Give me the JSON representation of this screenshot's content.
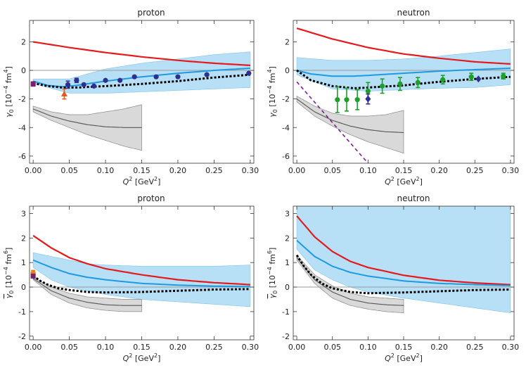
{
  "chart_data": [
    {
      "type": "line",
      "title": "proton",
      "ylabel_sym": "γ",
      "ylabel_sub": "0",
      "ylabel_overbar": false,
      "ylabel_units": "[10",
      "ylabel_exp": "−4",
      "ylabel_unit2": " fm",
      "ylabel_unit2_exp": "4",
      "ylabel_close": "]",
      "xlabel_main": "Q",
      "xlabel_exp": "2",
      "xlabel_units": " [GeV",
      "xlabel_units_exp": "2",
      "xlabel_close": "]",
      "xlim": [
        -0.005,
        0.305
      ],
      "ylim": [
        -6.5,
        3.5
      ],
      "xticks": [
        0.0,
        0.05,
        0.1,
        0.15,
        0.2,
        0.25,
        0.3
      ],
      "xtick_labels": [
        "0.00",
        "0.05",
        "0.10",
        "0.15",
        "0.20",
        "0.25",
        "0.30"
      ],
      "yticks": [
        -6,
        -4,
        -2,
        0,
        2
      ],
      "ytick_labels": [
        "-6",
        "-4",
        "-2",
        "0",
        "2"
      ],
      "red_line": {
        "x": [
          0,
          0.05,
          0.1,
          0.15,
          0.2,
          0.25,
          0.3
        ],
        "y": [
          2.0,
          1.6,
          1.25,
          0.95,
          0.7,
          0.5,
          0.35
        ]
      },
      "blue_line": {
        "x": [
          0,
          0.02,
          0.04,
          0.06,
          0.08,
          0.1,
          0.15,
          0.2,
          0.25,
          0.3
        ],
        "y": [
          -0.75,
          -1.05,
          -1.15,
          -1.05,
          -0.9,
          -0.75,
          -0.45,
          -0.2,
          0.0,
          0.15
        ]
      },
      "blue_band": {
        "x": [
          0,
          0.05,
          0.1,
          0.15,
          0.2,
          0.25,
          0.3
        ],
        "lower": [
          -0.9,
          -1.6,
          -1.6,
          -1.5,
          -1.4,
          -1.3,
          -1.2
        ],
        "upper": [
          -0.6,
          -0.6,
          0.1,
          0.5,
          0.8,
          1.1,
          1.3
        ]
      },
      "dotted_line": {
        "x": [
          0,
          0.02,
          0.04,
          0.06,
          0.1,
          0.15,
          0.2,
          0.25,
          0.3
        ],
        "y": [
          -0.9,
          -1.1,
          -1.2,
          -1.2,
          -1.1,
          -0.95,
          -0.75,
          -0.5,
          -0.3
        ]
      },
      "gray_line": {
        "x": [
          0,
          0.025,
          0.05,
          0.075,
          0.1,
          0.125,
          0.15
        ],
        "y": [
          -2.7,
          -3.2,
          -3.55,
          -3.8,
          -3.95,
          -4.0,
          -4.0
        ]
      },
      "gray_band": {
        "x": [
          0,
          0.025,
          0.05,
          0.075,
          0.1,
          0.125,
          0.15
        ],
        "lower": [
          -2.9,
          -3.5,
          -4.0,
          -4.5,
          -4.9,
          -5.3,
          -5.6
        ],
        "upper": [
          -2.5,
          -2.9,
          -3.1,
          -3.1,
          -2.9,
          -2.7,
          -2.4
        ]
      },
      "gray_refline": {
        "y": 0
      },
      "data_sets": [
        {
          "name": "navy-circles",
          "color": "#2e2f8f",
          "marker": "circle",
          "points": [
            {
              "x": 0.048,
              "y": -1.0,
              "err": 0.25
            },
            {
              "x": 0.06,
              "y": -0.7,
              "err": 0.15
            },
            {
              "x": 0.07,
              "y": -1.0,
              "err": 0.0
            },
            {
              "x": 0.084,
              "y": -1.1,
              "err": 0.0
            },
            {
              "x": 0.1,
              "y": -0.7,
              "err": 0.0
            },
            {
              "x": 0.12,
              "y": -0.7,
              "err": 0.0
            },
            {
              "x": 0.14,
              "y": -0.45,
              "err": 0.0
            },
            {
              "x": 0.17,
              "y": -0.45,
              "err": 0.0
            },
            {
              "x": 0.2,
              "y": -0.45,
              "err": 0.0
            },
            {
              "x": 0.24,
              "y": -0.3,
              "err": 0.0
            },
            {
              "x": 0.298,
              "y": -0.2,
              "err": 0.0
            }
          ]
        },
        {
          "name": "orange-triangle",
          "color": "#e8581c",
          "marker": "triangle",
          "points": [
            {
              "x": 0.043,
              "y": -1.65,
              "err": 0.35
            }
          ]
        },
        {
          "name": "purple-square",
          "color": "#7a1f6b",
          "marker": "square",
          "points": [
            {
              "x": 0.0,
              "y": -0.95,
              "err": 0.15
            }
          ]
        }
      ],
      "purple_dashed": null
    },
    {
      "type": "line",
      "title": "neutron",
      "ylabel_sym": "γ",
      "ylabel_sub": "0",
      "ylabel_overbar": false,
      "ylabel_units": "[10",
      "ylabel_exp": "−4",
      "ylabel_unit2": " fm",
      "ylabel_unit2_exp": "4",
      "ylabel_close": "]",
      "xlabel_main": "Q",
      "xlabel_exp": "2",
      "xlabel_units": " [GeV",
      "xlabel_units_exp": "2",
      "xlabel_close": "]",
      "xlim": [
        -0.005,
        0.305
      ],
      "ylim": [
        -6.5,
        3.5
      ],
      "xticks": [
        0.0,
        0.05,
        0.1,
        0.15,
        0.2,
        0.25,
        0.3
      ],
      "xtick_labels": [
        "0.00",
        "0.05",
        "0.10",
        "0.15",
        "0.20",
        "0.25",
        "0.30"
      ],
      "yticks": [
        -6,
        -4,
        -2,
        0,
        2
      ],
      "ytick_labels": [
        "-6",
        "-4",
        "-2",
        "0",
        "2"
      ],
      "red_line": {
        "x": [
          0,
          0.05,
          0.1,
          0.15,
          0.2,
          0.25,
          0.3
        ],
        "y": [
          2.95,
          2.2,
          1.6,
          1.15,
          0.85,
          0.6,
          0.45
        ]
      },
      "blue_line": {
        "x": [
          0,
          0.02,
          0.05,
          0.08,
          0.1,
          0.15,
          0.2,
          0.25,
          0.3
        ],
        "y": [
          0.0,
          -0.25,
          -0.4,
          -0.4,
          -0.35,
          -0.2,
          -0.05,
          0.05,
          0.15
        ]
      },
      "blue_band": {
        "x": [
          0,
          0.05,
          0.1,
          0.15,
          0.2,
          0.25,
          0.3
        ],
        "lower": [
          -0.3,
          -1.3,
          -1.45,
          -1.35,
          -1.25,
          -1.2,
          -1.0
        ],
        "upper": [
          0.9,
          0.7,
          0.7,
          0.8,
          1.0,
          1.25,
          1.5
        ]
      },
      "dotted_line": {
        "x": [
          0,
          0.02,
          0.05,
          0.08,
          0.1,
          0.15,
          0.2,
          0.25,
          0.3
        ],
        "y": [
          0.0,
          -0.7,
          -1.1,
          -1.25,
          -1.2,
          -1.05,
          -0.8,
          -0.6,
          -0.45
        ]
      },
      "gray_line": {
        "x": [
          0,
          0.025,
          0.05,
          0.075,
          0.1,
          0.125,
          0.15
        ],
        "y": [
          -2.0,
          -2.9,
          -3.5,
          -3.9,
          -4.15,
          -4.3,
          -4.35
        ]
      },
      "gray_band": {
        "x": [
          0,
          0.025,
          0.05,
          0.075,
          0.1,
          0.125,
          0.15
        ],
        "lower": [
          -2.2,
          -3.2,
          -3.9,
          -4.5,
          -5.0,
          -5.4,
          -5.8
        ],
        "upper": [
          -1.8,
          -2.5,
          -3.0,
          -3.2,
          -3.2,
          -3.1,
          -2.8
        ]
      },
      "gray_refline": {
        "y": 0
      },
      "data_sets": [
        {
          "name": "green-circles",
          "color": "#1f9e2a",
          "marker": "circle",
          "points": [
            {
              "x": 0.057,
              "y": -2.05,
              "err": 0.9
            },
            {
              "x": 0.07,
              "y": -2.05,
              "err": 0.8
            },
            {
              "x": 0.085,
              "y": -2.05,
              "err": 0.7
            },
            {
              "x": 0.1,
              "y": -1.45,
              "err": 0.6
            },
            {
              "x": 0.12,
              "y": -1.1,
              "err": 0.5
            },
            {
              "x": 0.145,
              "y": -0.95,
              "err": 0.45
            },
            {
              "x": 0.17,
              "y": -0.85,
              "err": 0.35
            },
            {
              "x": 0.205,
              "y": -0.65,
              "err": 0.3
            },
            {
              "x": 0.245,
              "y": -0.45,
              "err": 0.25
            },
            {
              "x": 0.29,
              "y": -0.4,
              "err": 0.2
            }
          ]
        },
        {
          "name": "navy-diamonds",
          "color": "#2e2f8f",
          "marker": "diamond",
          "points": [
            {
              "x": 0.1,
              "y": -2.0,
              "err": 0.35
            },
            {
              "x": 0.255,
              "y": -0.6,
              "err": 0.0
            }
          ]
        }
      ],
      "purple_dashed": {
        "x": [
          0.0,
          0.1
        ],
        "y": [
          -0.8,
          -6.5
        ]
      }
    },
    {
      "type": "line",
      "title": "proton",
      "ylabel_sym": "γ",
      "ylabel_sub": "0",
      "ylabel_overbar": true,
      "ylabel_units": "[10",
      "ylabel_exp": "−4",
      "ylabel_unit2": " fm",
      "ylabel_unit2_exp": "6",
      "ylabel_close": "]",
      "xlabel_main": "Q",
      "xlabel_exp": "2",
      "xlabel_units": " [GeV",
      "xlabel_units_exp": "2",
      "xlabel_close": "]",
      "xlim": [
        -0.005,
        0.305
      ],
      "ylim": [
        -2.15,
        3.3
      ],
      "xticks": [
        0.0,
        0.05,
        0.1,
        0.15,
        0.2,
        0.25,
        0.3
      ],
      "xtick_labels": [
        "0.00",
        "0.05",
        "0.10",
        "0.15",
        "0.20",
        "0.25",
        "0.30"
      ],
      "yticks": [
        -2,
        -1,
        0,
        1,
        2,
        3
      ],
      "ytick_labels": [
        "-2",
        "-1",
        "0",
        "1",
        "2",
        "3"
      ],
      "red_line": {
        "x": [
          0,
          0.025,
          0.05,
          0.075,
          0.1,
          0.15,
          0.2,
          0.25,
          0.3
        ],
        "y": [
          2.1,
          1.6,
          1.2,
          0.95,
          0.75,
          0.5,
          0.3,
          0.18,
          0.1
        ]
      },
      "blue_line": {
        "x": [
          0,
          0.025,
          0.05,
          0.075,
          0.1,
          0.15,
          0.2,
          0.25,
          0.3
        ],
        "y": [
          1.1,
          0.8,
          0.55,
          0.4,
          0.3,
          0.15,
          0.08,
          0.04,
          0.02
        ]
      },
      "blue_band": {
        "x": [
          0,
          0.025,
          0.05,
          0.075,
          0.1,
          0.15,
          0.2,
          0.25,
          0.3
        ],
        "lower": [
          0.8,
          0.3,
          0.0,
          -0.15,
          -0.3,
          -0.5,
          -0.6,
          -0.7,
          -0.8
        ],
        "upper": [
          1.4,
          1.25,
          1.1,
          0.95,
          0.9,
          0.85,
          0.85,
          0.85,
          0.9
        ]
      },
      "dotted_line": {
        "x": [
          0,
          0.01,
          0.02,
          0.035,
          0.05,
          0.075,
          0.1,
          0.15,
          0.2,
          0.25,
          0.3
        ],
        "y": [
          0.45,
          0.25,
          0.1,
          -0.05,
          -0.12,
          -0.2,
          -0.22,
          -0.2,
          -0.15,
          -0.1,
          -0.08
        ]
      },
      "gray_line": {
        "x": [
          0,
          0.025,
          0.05,
          0.075,
          0.1,
          0.125,
          0.15
        ],
        "y": [
          0.35,
          -0.15,
          -0.45,
          -0.62,
          -0.72,
          -0.75,
          -0.75
        ]
      },
      "gray_band": {
        "x": [
          0,
          0.025,
          0.05,
          0.075,
          0.1,
          0.125,
          0.15
        ],
        "lower": [
          0.3,
          -0.3,
          -0.65,
          -0.85,
          -0.95,
          -1.0,
          -1.0
        ],
        "upper": [
          0.4,
          0.0,
          -0.25,
          -0.4,
          -0.45,
          -0.5,
          -0.5
        ]
      },
      "gray_refline": {
        "y": 0
      },
      "data_sets": [
        {
          "name": "orange-point",
          "color": "#e8801c",
          "marker": "circle",
          "points": [
            {
              "x": 0.0,
              "y": 0.58,
              "err": 0.1
            }
          ]
        },
        {
          "name": "purple-square",
          "color": "#7a1f6b",
          "marker": "square",
          "points": [
            {
              "x": 0.0,
              "y": 0.45,
              "err": 0.05
            }
          ]
        }
      ],
      "purple_dashed": null
    },
    {
      "type": "line",
      "title": "neutron",
      "ylabel_sym": "γ",
      "ylabel_sub": "0",
      "ylabel_overbar": true,
      "ylabel_units": "[10",
      "ylabel_exp": "−4",
      "ylabel_unit2": " fm",
      "ylabel_unit2_exp": "6",
      "ylabel_close": "]",
      "xlabel_main": "Q",
      "xlabel_exp": "2",
      "xlabel_units": " [GeV",
      "xlabel_units_exp": "2",
      "xlabel_close": "]",
      "xlim": [
        -0.005,
        0.305
      ],
      "ylim": [
        -2.15,
        3.3
      ],
      "xticks": [
        0.0,
        0.05,
        0.1,
        0.15,
        0.2,
        0.25,
        0.3
      ],
      "xtick_labels": [
        "0.00",
        "0.05",
        "0.10",
        "0.15",
        "0.20",
        "0.25",
        "0.30"
      ],
      "yticks": [
        -2,
        -1,
        0,
        1,
        2,
        3
      ],
      "ytick_labels": [
        "-2",
        "-1",
        "0",
        "1",
        "2",
        "3"
      ],
      "red_line": {
        "x": [
          0,
          0.025,
          0.05,
          0.075,
          0.1,
          0.15,
          0.2,
          0.25,
          0.3
        ],
        "y": [
          2.9,
          2.05,
          1.45,
          1.05,
          0.8,
          0.48,
          0.28,
          0.17,
          0.1
        ]
      },
      "blue_line": {
        "x": [
          0,
          0.025,
          0.05,
          0.075,
          0.1,
          0.15,
          0.2,
          0.25,
          0.3
        ],
        "y": [
          1.9,
          1.25,
          0.85,
          0.6,
          0.45,
          0.25,
          0.15,
          0.1,
          0.06
        ]
      },
      "blue_band": {
        "x": [
          0,
          0.025,
          0.05,
          0.075,
          0.1,
          0.15,
          0.2,
          0.25,
          0.3
        ],
        "lower": [
          1.55,
          0.7,
          0.3,
          0.0,
          -0.2,
          -0.45,
          -0.65,
          -0.85,
          -1.05
        ]
      },
      "dotted_line": {
        "x": [
          0,
          0.01,
          0.02,
          0.035,
          0.05,
          0.075,
          0.1,
          0.15,
          0.2,
          0.25,
          0.3
        ],
        "y": [
          1.3,
          0.85,
          0.5,
          0.15,
          -0.05,
          -0.2,
          -0.25,
          -0.22,
          -0.17,
          -0.12,
          -0.1
        ]
      },
      "gray_line": {
        "x": [
          0,
          0.025,
          0.05,
          0.075,
          0.1,
          0.125,
          0.15
        ],
        "y": [
          1.2,
          0.3,
          -0.2,
          -0.5,
          -0.65,
          -0.72,
          -0.75
        ]
      },
      "gray_band": {
        "x": [
          0,
          0.025,
          0.05,
          0.075,
          0.1,
          0.125,
          0.15
        ],
        "lower": [
          1.1,
          0.15,
          -0.45,
          -0.75,
          -0.9,
          -1.0,
          -1.05
        ],
        "upper": [
          1.3,
          0.5,
          0.05,
          -0.25,
          -0.4,
          -0.45,
          -0.5
        ]
      },
      "gray_refline": {
        "y": 0
      },
      "data_sets": [],
      "purple_dashed": null
    }
  ]
}
